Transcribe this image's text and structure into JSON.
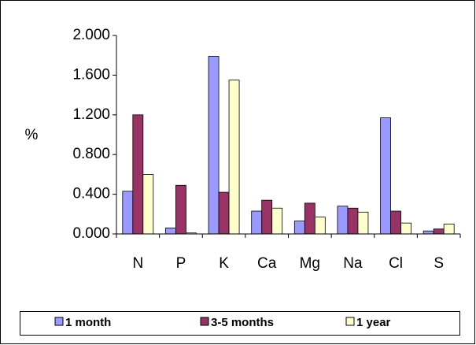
{
  "chart_data": {
    "type": "bar",
    "y_label": "%",
    "categories": [
      "N",
      "P",
      "K",
      "Ca",
      "Mg",
      "Na",
      "Cl",
      "S"
    ],
    "series": [
      {
        "name": "1 month",
        "color": "#9999ff",
        "values": [
          0.43,
          0.06,
          1.79,
          0.23,
          0.13,
          0.28,
          1.17,
          0.03
        ]
      },
      {
        "name": "3-5 months",
        "color": "#993366",
        "values": [
          1.2,
          0.49,
          0.42,
          0.34,
          0.31,
          0.26,
          0.23,
          0.05
        ]
      },
      {
        "name": "1 year",
        "color": "#ffffcc",
        "values": [
          0.6,
          0.01,
          1.55,
          0.26,
          0.17,
          0.22,
          0.11,
          0.1
        ]
      }
    ],
    "ylim": [
      0,
      2
    ],
    "yticks": [
      {
        "value": 0,
        "label": "0.000"
      },
      {
        "value": 0.4,
        "label": "0.400"
      },
      {
        "value": 0.8,
        "label": "0.800"
      },
      {
        "value": 1.2,
        "label": "1.200"
      },
      {
        "value": 1.6,
        "label": "1.600"
      },
      {
        "value": 2,
        "label": "2.000"
      }
    ],
    "grid": false,
    "legend": "bottom"
  }
}
